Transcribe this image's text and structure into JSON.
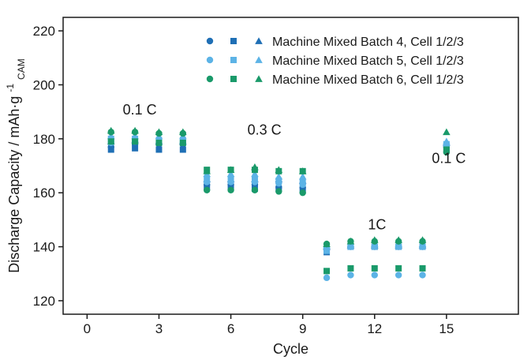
{
  "chart_data": {
    "type": "scatter",
    "xlabel": "Cycle",
    "ylabel": "Discharge Capacity / mAh·g",
    "ylabel_sup": "-1",
    "ylabel_sub": "CAM",
    "xlim": [
      -1,
      18
    ],
    "ylim": [
      115,
      225
    ],
    "xticks": [
      0,
      3,
      6,
      9,
      12,
      15
    ],
    "yticks": [
      120,
      140,
      160,
      180,
      200,
      220
    ],
    "legend_position": "top-right",
    "grid": false,
    "colors": {
      "batch4": "#1f6fb5",
      "batch5": "#5cb3e6",
      "batch6": "#1a9a6a"
    },
    "annotations": [
      {
        "text": "0.1 C",
        "x": 2.2,
        "y": 189
      },
      {
        "text": "0.3 C",
        "x": 7.4,
        "y": 181.5
      },
      {
        "text": "1C",
        "x": 12.1,
        "y": 146.5
      },
      {
        "text": "0.1 C",
        "x": 15.1,
        "y": 171
      }
    ],
    "series": [
      {
        "name": "Machine Mixed Batch 4, Cell 1/2/3",
        "color": "#1f6fb5",
        "markers": [
          "circle",
          "square",
          "triangle"
        ],
        "x": [
          1,
          2,
          3,
          4,
          5,
          6,
          7,
          8,
          9,
          10,
          11,
          12,
          13,
          14,
          15
        ],
        "cells": [
          [
            177,
            178,
            178,
            178,
            163,
            163,
            163,
            162,
            162,
            139,
            140,
            140,
            140,
            140,
            177
          ],
          [
            176,
            176.5,
            176,
            176,
            162,
            162,
            161.5,
            161.5,
            161,
            138,
            140,
            140,
            140,
            140,
            176
          ],
          [
            179,
            179.5,
            179,
            179,
            165,
            165,
            165,
            165,
            164.5,
            140,
            140.5,
            140.5,
            140.5,
            140.5,
            178.5
          ]
        ]
      },
      {
        "name": "Machine Mixed Batch 5, Cell 1/2/3",
        "color": "#5cb3e6",
        "markers": [
          "circle",
          "square",
          "triangle"
        ],
        "x": [
          1,
          2,
          3,
          4,
          5,
          6,
          7,
          8,
          9,
          10,
          11,
          12,
          13,
          14,
          15
        ],
        "cells": [
          [
            178.5,
            179,
            178.5,
            178.5,
            164,
            164,
            164,
            163.5,
            163,
            128.5,
            129.5,
            129.5,
            129.5,
            129.5,
            177.5
          ],
          [
            180,
            180,
            179.5,
            179.5,
            165,
            165,
            165,
            164.5,
            164,
            138.5,
            140,
            140,
            140,
            140,
            178
          ],
          [
            181,
            181,
            181,
            181,
            167,
            167,
            167,
            166,
            166,
            140.5,
            141,
            141,
            141,
            141,
            179
          ]
        ]
      },
      {
        "name": "Machine Mixed Batch 6, Cell 1/2/3",
        "color": "#1a9a6a",
        "markers": [
          "circle",
          "square",
          "triangle"
        ],
        "x": [
          1,
          2,
          3,
          4,
          5,
          6,
          7,
          8,
          9,
          10,
          11,
          12,
          13,
          14,
          15
        ],
        "cells": [
          [
            182.5,
            182.5,
            182,
            182,
            161,
            161,
            161,
            160.5,
            160,
            141,
            142,
            142,
            142,
            142,
            175
          ],
          [
            179,
            179,
            178.5,
            178.5,
            168.5,
            168.5,
            168.5,
            168,
            168,
            131,
            132,
            132,
            132,
            132,
            176
          ],
          [
            183,
            183,
            182.5,
            182.5,
            168,
            168.5,
            169.5,
            168.5,
            168,
            141,
            142,
            142.5,
            142.5,
            142.5,
            182.5
          ]
        ]
      }
    ]
  }
}
